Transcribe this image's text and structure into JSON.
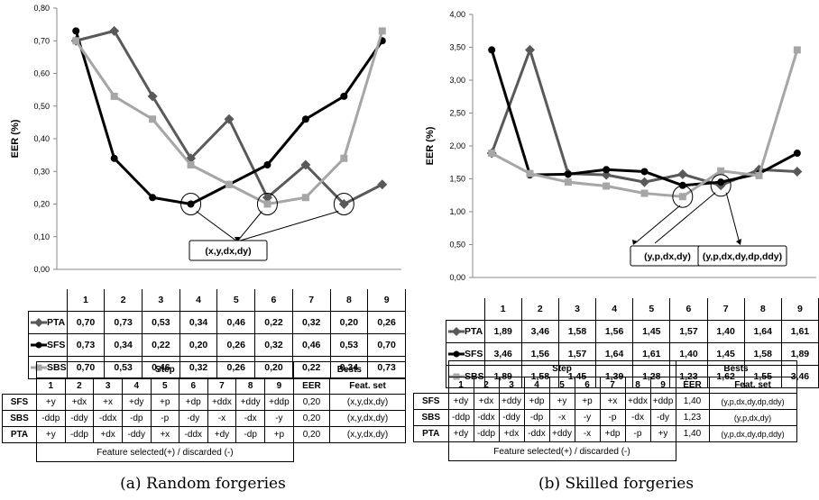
{
  "chart_data": [
    {
      "type": "line",
      "ylabel": "EER (%)",
      "categories": [
        "1",
        "2",
        "3",
        "4",
        "5",
        "6",
        "7",
        "8",
        "9"
      ],
      "ylim": [
        0,
        0.8
      ],
      "yticks": [
        "0,00",
        "0,10",
        "0,20",
        "0,30",
        "0,40",
        "0,50",
        "0,60",
        "0,70",
        "0,80"
      ],
      "grid": false,
      "series": [
        {
          "name": "PTA",
          "color": "#595959",
          "marker": "diamond",
          "values": [
            0.7,
            0.73,
            0.53,
            0.34,
            0.46,
            0.22,
            0.32,
            0.2,
            0.26
          ],
          "labels": [
            "0,70",
            "0,73",
            "0,53",
            "0,34",
            "0,46",
            "0,22",
            "0,32",
            "0,20",
            "0,26"
          ]
        },
        {
          "name": "SFS",
          "color": "#000000",
          "marker": "circle",
          "values": [
            0.73,
            0.34,
            0.22,
            0.2,
            0.26,
            0.32,
            0.46,
            0.53,
            0.7
          ],
          "labels": [
            "0,73",
            "0,34",
            "0,22",
            "0,20",
            "0,26",
            "0,32",
            "0,46",
            "0,53",
            "0,70"
          ]
        },
        {
          "name": "SBS",
          "color": "#a6a6a6",
          "marker": "square",
          "values": [
            0.7,
            0.53,
            0.46,
            0.32,
            0.26,
            0.2,
            0.22,
            0.34,
            0.73
          ],
          "labels": [
            "0,70",
            "0,53",
            "0,46",
            "0,32",
            "0,26",
            "0,20",
            "0,22",
            "0,34",
            "0,73"
          ]
        }
      ],
      "annotations": [
        {
          "text": "(x,y,dx,dy)",
          "circled_points": [
            {
              "x": "4",
              "y": 0.2
            },
            {
              "x": "6",
              "y": 0.2
            },
            {
              "x": "8",
              "y": 0.2
            }
          ]
        }
      ]
    },
    {
      "type": "line",
      "ylabel": "EER (%)",
      "categories": [
        "1",
        "2",
        "3",
        "4",
        "5",
        "6",
        "7",
        "8",
        "9"
      ],
      "ylim": [
        0,
        4
      ],
      "yticks": [
        "0,00",
        "0,50",
        "1,00",
        "1,50",
        "2,00",
        "2,50",
        "3,00",
        "3,50",
        "4,00"
      ],
      "grid": false,
      "series": [
        {
          "name": "PTA",
          "color": "#595959",
          "marker": "diamond",
          "values": [
            1.89,
            3.46,
            1.58,
            1.56,
            1.45,
            1.57,
            1.4,
            1.64,
            1.61
          ],
          "labels": [
            "1,89",
            "3,46",
            "1,58",
            "1,56",
            "1,45",
            "1,57",
            "1,40",
            "1,64",
            "1,61"
          ]
        },
        {
          "name": "SFS",
          "color": "#000000",
          "marker": "circle",
          "values": [
            3.46,
            1.56,
            1.57,
            1.64,
            1.61,
            1.4,
            1.45,
            1.58,
            1.89
          ],
          "labels": [
            "3,46",
            "1,56",
            "1,57",
            "1,64",
            "1,61",
            "1,40",
            "1,45",
            "1,58",
            "1,89"
          ]
        },
        {
          "name": "SBS",
          "color": "#a6a6a6",
          "marker": "square",
          "values": [
            1.89,
            1.58,
            1.45,
            1.39,
            1.28,
            1.23,
            1.62,
            1.55,
            3.46
          ],
          "labels": [
            "1,89",
            "1,58",
            "1,45",
            "1,39",
            "1,28",
            "1,23",
            "1,62",
            "1,55",
            "3,46"
          ]
        }
      ],
      "annotations": [
        {
          "text": "(y,p,dx,dy)",
          "circled_points": [
            {
              "x": "6",
              "y": 1.23
            }
          ]
        },
        {
          "text": "(y,p,dx,dy,dp,ddy)",
          "circled_points": [
            {
              "x": "7",
              "y": 1.4
            }
          ]
        }
      ]
    }
  ],
  "tables": [
    {
      "step_header": "Step",
      "bests_header": "Bests",
      "steps": [
        "1",
        "2",
        "3",
        "4",
        "5",
        "6",
        "7",
        "8",
        "9"
      ],
      "eer_header": "EER",
      "featset_header": "Feat. set",
      "rows": [
        {
          "name": "SFS",
          "cells": [
            "+y",
            "+dx",
            "+x",
            "+dy",
            "+p",
            "+dp",
            "+ddx",
            "+ddy",
            "+ddp"
          ],
          "eer": "0,20",
          "feat": "(x,y,dx,dy)"
        },
        {
          "name": "SBS",
          "cells": [
            "-ddp",
            "-ddy",
            "-ddx",
            "-dp",
            "-p",
            "-dy",
            "-x",
            "-dx",
            "-y"
          ],
          "eer": "0,20",
          "feat": "(x,y,dx,dy)"
        },
        {
          "name": "PTA",
          "cells": [
            "+y",
            "-ddp",
            "+dx",
            "-ddy",
            "+x",
            "-ddx",
            "+dy",
            "-dp",
            "+p"
          ],
          "eer": "0,20",
          "feat": "(x,y,dx,dy)"
        }
      ],
      "footer": "Feature selected(+) / discarded (-)"
    },
    {
      "step_header": "Step",
      "bests_header": "Bests",
      "steps": [
        "1",
        "2",
        "3",
        "4",
        "5",
        "6",
        "7",
        "8",
        "9"
      ],
      "eer_header": "EER",
      "featset_header": "Feat. set",
      "rows": [
        {
          "name": "SFS",
          "cells": [
            "+dy",
            "+dx",
            "+ddy",
            "+dp",
            "+y",
            "+p",
            "+x",
            "+ddx",
            "+ddp"
          ],
          "eer": "1,40",
          "feat": "(y,p,dx,dy,dp,ddy)"
        },
        {
          "name": "SBS",
          "cells": [
            "-ddp",
            "-ddx",
            "-ddy",
            "-dp",
            "-x",
            "-y",
            "-p",
            "-dx",
            "-dy"
          ],
          "eer": "1,23",
          "feat": "(y,p,dx,dy)"
        },
        {
          "name": "PTA",
          "cells": [
            "+dy",
            "-ddp",
            "+dx",
            "-ddx",
            "+ddy",
            "-x",
            "+dp",
            "-p",
            "+y"
          ],
          "eer": "1,40",
          "feat": "(y,p,dx,dy,dp,ddy)"
        }
      ],
      "footer": "Feature selected(+) / discarded (-)"
    }
  ],
  "captions": [
    "(a) Random forgeries",
    "(b) Skilled forgeries"
  ]
}
